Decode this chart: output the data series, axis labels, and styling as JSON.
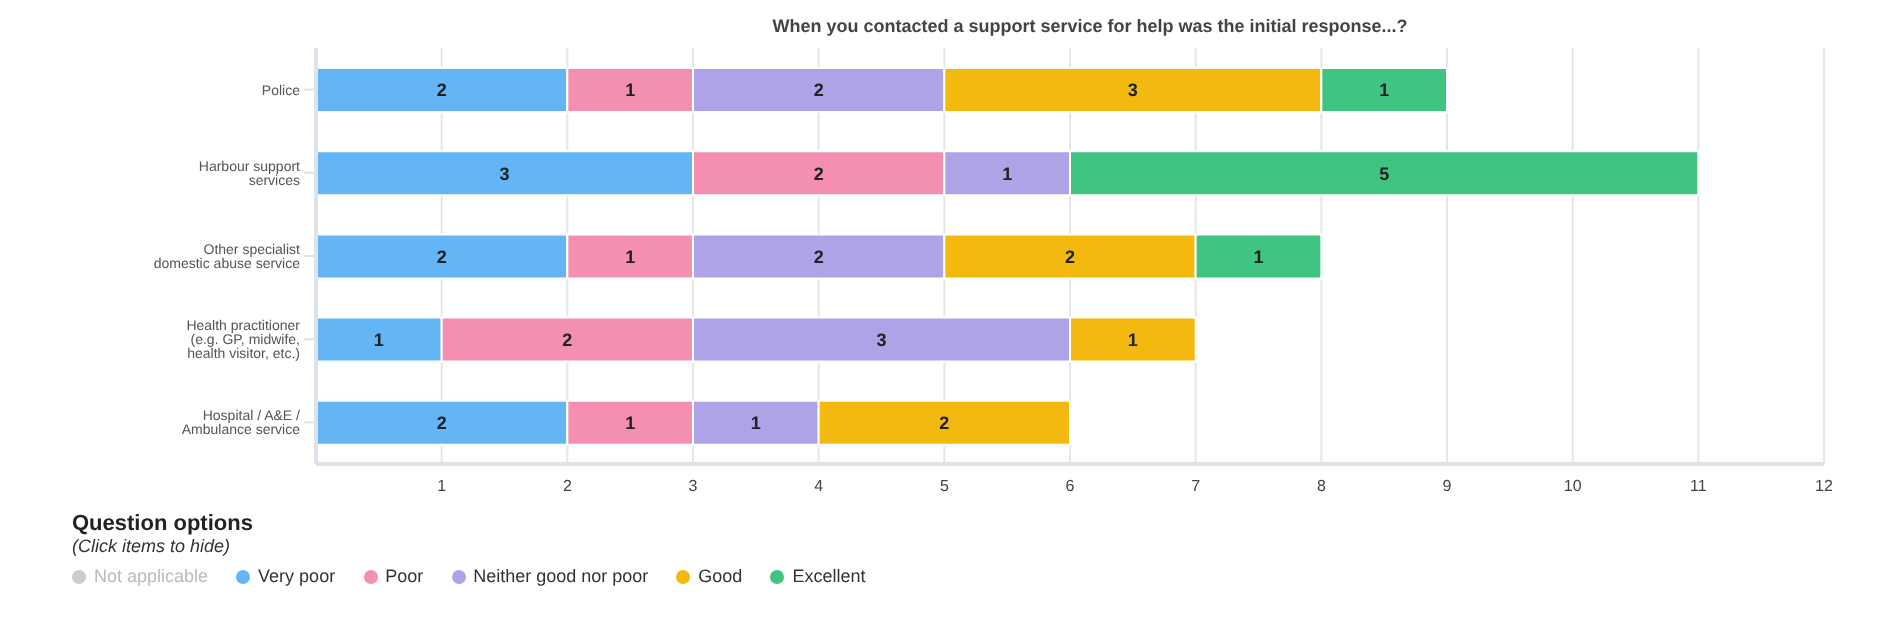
{
  "chart_data": {
    "type": "bar",
    "orientation": "horizontal",
    "stacked": true,
    "title": "When you contacted a support service for help was the initial response...?",
    "categories": [
      "Police",
      "Harbour support services",
      "Other specialist domestic abuse service",
      "Health practitioner (e.g. GP, midwife, health visitor, etc.)",
      "Hospital / A&E / Ambulance service"
    ],
    "series": [
      {
        "name": "Not applicable",
        "color": "#cccccc",
        "values": [
          null,
          null,
          null,
          null,
          null
        ]
      },
      {
        "name": "Very poor",
        "color": "#63b5f6",
        "values": [
          2,
          3,
          2,
          1,
          2
        ]
      },
      {
        "name": "Poor",
        "color": "#f48fb1",
        "values": [
          1,
          2,
          1,
          2,
          1
        ]
      },
      {
        "name": "Neither good nor poor",
        "color": "#ada3e6",
        "values": [
          2,
          1,
          2,
          3,
          1
        ]
      },
      {
        "name": "Good",
        "color": "#f4b90f",
        "values": [
          3,
          null,
          2,
          1,
          2
        ]
      },
      {
        "name": "Excellent",
        "color": "#40c481",
        "values": [
          1,
          5,
          1,
          null,
          null
        ]
      }
    ],
    "xlim": [
      0,
      12
    ],
    "xticks": [
      1,
      2,
      3,
      4,
      5,
      6,
      7,
      8,
      9,
      10,
      11,
      12
    ],
    "grid": "x",
    "data_labels": true,
    "legend": "bottom left",
    "legend_title": "Question options",
    "annotations": [
      "(Click items to hide)"
    ]
  }
}
